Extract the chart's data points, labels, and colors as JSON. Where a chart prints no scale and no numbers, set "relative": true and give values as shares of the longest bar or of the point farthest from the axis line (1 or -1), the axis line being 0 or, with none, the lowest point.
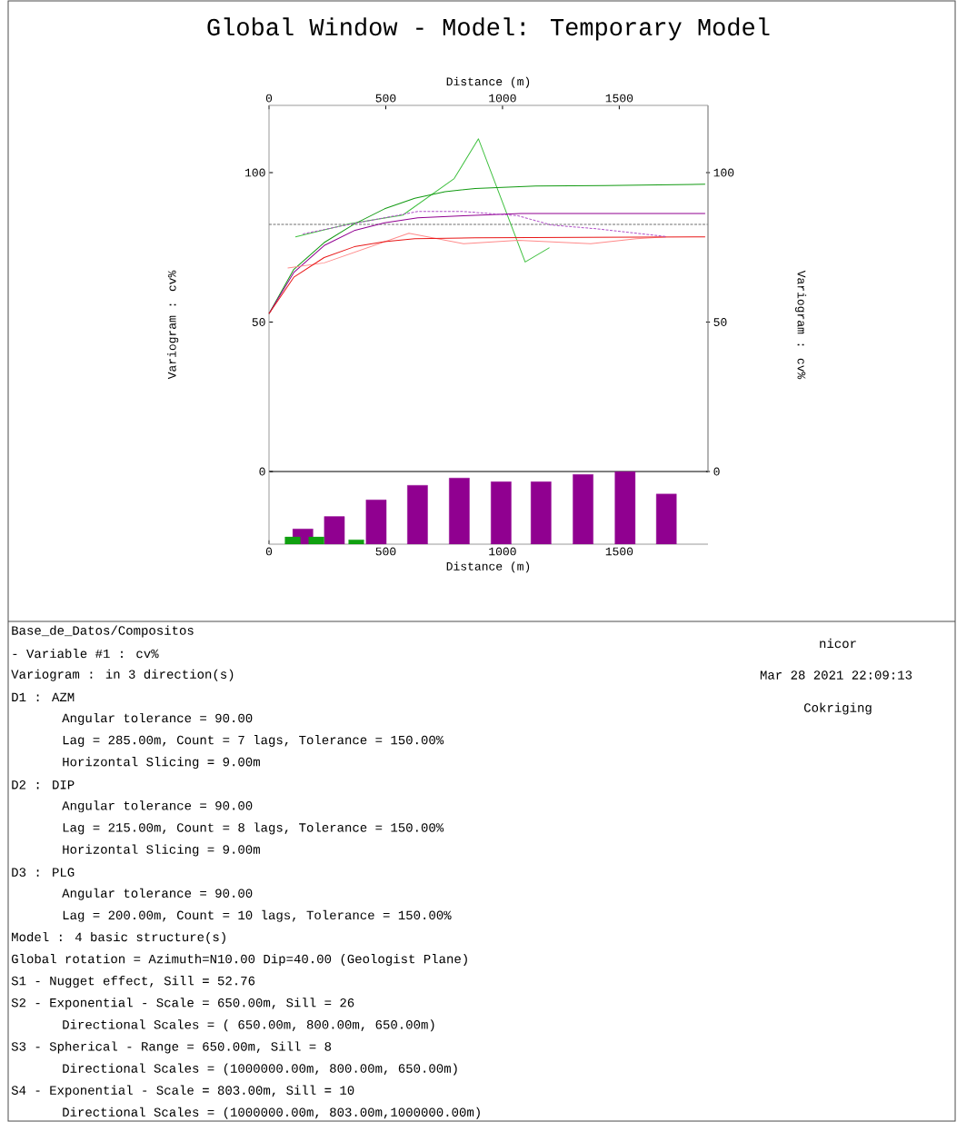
{
  "chart_data": [
    {
      "type": "line",
      "title": "Global Window - Model: Temporary Model",
      "xlabel": "Distance (m)",
      "ylabel": "Variogram : cv%",
      "y2label": "Variogram : cv%",
      "xlim": [
        0,
        1880
      ],
      "xticks": [
        0,
        500,
        1000,
        1500
      ],
      "ylim": [
        0,
        122.5
      ],
      "yticks": [
        0,
        50,
        100
      ],
      "y2lim": [
        0,
        122.5
      ],
      "y2ticks": [
        0,
        50,
        100
      ],
      "marker": "none",
      "series": [
        {
          "color": "#40c040",
          "line_style": "solid",
          "x": [
            113,
            339,
            573,
            793,
            897,
            1097,
            1201
          ],
          "values": [
            78.5,
            82.8,
            85.8,
            98.0,
            111.3,
            70.1,
            74.9
          ]
        },
        {
          "color": "#129a12",
          "line_style": "solid",
          "x": [
            0,
            106,
            236,
            365,
            495,
            624,
            754,
            883,
            1142,
            1440,
            1868
          ],
          "values": [
            52.8,
            67.6,
            76.6,
            82.8,
            87.9,
            91.4,
            93.6,
            94.7,
            95.5,
            95.7,
            96.1
          ]
        },
        {
          "color": "#900090",
          "line_style": "solid",
          "x": [
            0,
            106,
            236,
            365,
            495,
            637,
            832,
            1079,
            1868
          ],
          "values": [
            52.8,
            66.6,
            75.6,
            80.6,
            83.2,
            84.9,
            85.6,
            86.3,
            86.3
          ]
        },
        {
          "color": "#ff8a8a",
          "line_style": "solid",
          "x": [
            80,
            236,
            599,
            834,
            1067,
            1378,
            1573,
            1700
          ],
          "values": [
            68.1,
            69.8,
            79.7,
            76.2,
            77.4,
            76.2,
            77.9,
            78.5
          ]
        },
        {
          "color": "#e81818",
          "line_style": "solid",
          "x": [
            0,
            106,
            236,
            365,
            495,
            624,
            883,
            1868
          ],
          "values": [
            52.8,
            65.0,
            71.6,
            75.2,
            76.9,
            77.9,
            78.2,
            78.5
          ]
        },
        {
          "color": "#b050c8",
          "line_style": "dashed",
          "x": [
            145,
            365,
            637,
            832,
            1066,
            1207,
            1402,
            1700
          ],
          "values": [
            79.5,
            83.0,
            87.0,
            87.0,
            85.6,
            82.5,
            81.2,
            78.6
          ]
        }
      ],
      "ref_lines": [
        {
          "axis": "y",
          "value": 82.7,
          "color": "#707070",
          "line_style": "dashed"
        }
      ],
      "annotations": [
        "Base_de_Datos/Compositos",
        "- Variable #1 : cv%",
        "Variogram : in 3 direction(s)",
        "D1 : AZM",
        "Angular tolerance = 90.00",
        "Lag = 285.00m, Count = 7 lags, Tolerance = 150.00%",
        "Horizontal Slicing = 9.00m",
        "D2 : DIP",
        "Angular tolerance = 90.00",
        "Lag = 215.00m, Count = 8 lags, Tolerance = 150.00%",
        "Horizontal Slicing = 9.00m",
        "D3 : PLG",
        "Angular tolerance = 90.00",
        "Lag = 200.00m, Count = 10 lags, Tolerance = 150.00%",
        "Model : 4 basic structure(s)",
        "Global rotation = Azimuth=N10.00 Dip=40.00 (Geologist Plane)",
        "S1 - Nugget effect, Sill = 52.76",
        "S2 - Exponential - Scale = 650.00m, Sill = 26",
        "Directional Scales = ( 650.00m, 800.00m, 650.00m)",
        "S3 - Spherical - Range = 650.00m, Sill = 8",
        "Directional Scales = (1000000.00m, 800.00m, 650.00m)",
        "S4 - Exponential - Scale = 803.00m, Sill = 10",
        "Directional Scales = (1000000.00m, 803.00m,1000000.00m)",
        "nicor",
        "Mar 28 2021 22:09:13",
        "Cokriging"
      ]
    },
    {
      "type": "bar",
      "relative": true,
      "xlabel": "Distance (m)",
      "xlim": [
        0,
        1880
      ],
      "xticks": [
        0,
        500,
        1000,
        1500
      ],
      "series": [
        {
          "color": "#900090",
          "x": [
            145,
            280,
            459,
            636,
            815,
            994,
            1165,
            1345,
            1525,
            1702
          ],
          "values": [
            0.21,
            0.38,
            0.61,
            0.81,
            0.91,
            0.86,
            0.86,
            0.96,
            1,
            0.69
          ]
        },
        {
          "color": "#10a010",
          "x": [
            101,
            203,
            374
          ],
          "values": [
            0.1,
            0.1,
            0.06
          ]
        }
      ]
    }
  ]
}
